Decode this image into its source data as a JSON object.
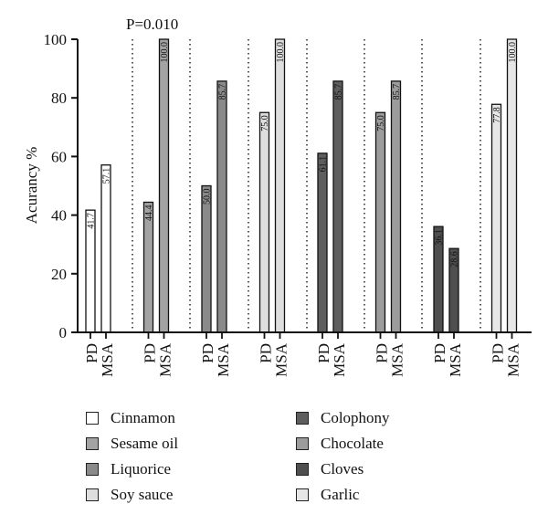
{
  "chart_data": {
    "type": "bar",
    "ylabel": "Acurancy %",
    "ylim": [
      0,
      100
    ],
    "yticks": [
      0,
      20,
      40,
      60,
      80,
      100
    ],
    "grid": false,
    "annotation": "P=0.010",
    "bar_labels": [
      "PD",
      "MSA"
    ],
    "groups": [
      {
        "name": "Cinnamon",
        "color": "#ffffff",
        "values": [
          41.7,
          57.1
        ],
        "labels": [
          "41.7",
          "57.1"
        ]
      },
      {
        "name": "Sesame oil",
        "color": "#a3a3a3",
        "values": [
          44.4,
          100.0
        ],
        "labels": [
          "44.4",
          "100.0"
        ]
      },
      {
        "name": "Liquorice",
        "color": "#8a8a8a",
        "values": [
          50.0,
          85.7
        ],
        "labels": [
          "50.0",
          "85.7"
        ]
      },
      {
        "name": "Soy sauce",
        "color": "#dedede",
        "values": [
          75.0,
          100.0
        ],
        "labels": [
          "75.0",
          "100.0"
        ]
      },
      {
        "name": "Colophony",
        "color": "#5e5e5e",
        "values": [
          61.1,
          85.7
        ],
        "labels": [
          "61.1",
          "85.7"
        ]
      },
      {
        "name": "Chocolate",
        "color": "#9c9c9c",
        "values": [
          75.0,
          85.7
        ],
        "labels": [
          "75.0",
          "85.7"
        ]
      },
      {
        "name": "Cloves",
        "color": "#4f4f4f",
        "values": [
          36.1,
          28.6
        ],
        "labels": [
          "36.1",
          "28.6"
        ]
      },
      {
        "name": "Garlic",
        "color": "#e6e6e6",
        "values": [
          77.8,
          100.0
        ],
        "labels": [
          "77.8",
          "100.0"
        ]
      }
    ]
  }
}
